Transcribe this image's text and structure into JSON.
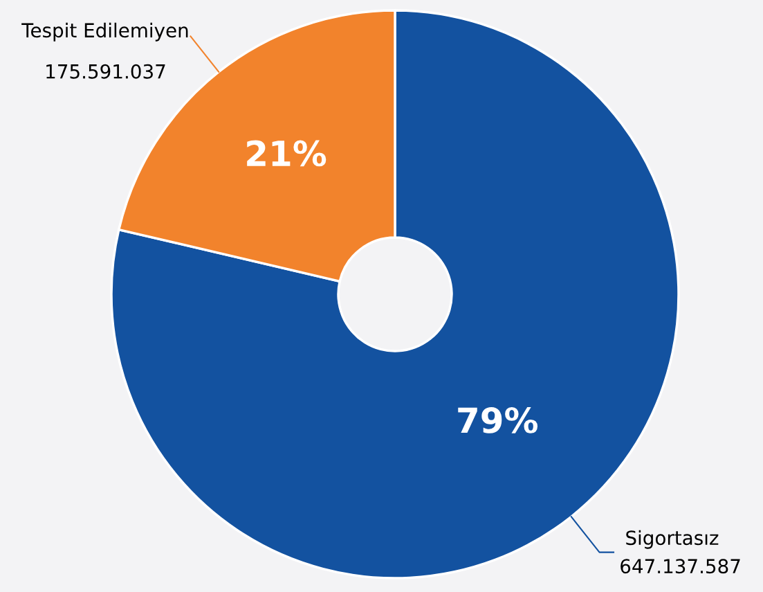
{
  "chart_data": {
    "type": "donut",
    "categories": [
      "Sigortasız",
      "Tespit Edilemiyen"
    ],
    "values": [
      647137587,
      175591037
    ],
    "colors": [
      "#1352a0",
      "#f2832c"
    ],
    "value_labels": [
      "647.137.587",
      "175.591.037"
    ],
    "annotations": [
      "79%",
      "21%"
    ],
    "legend": false
  }
}
